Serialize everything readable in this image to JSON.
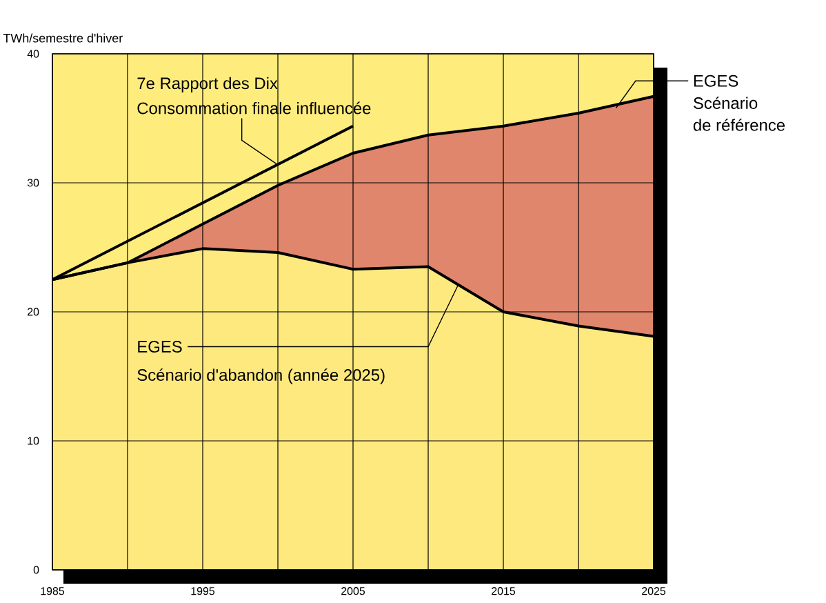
{
  "chart_data": {
    "type": "line",
    "ylabel": "TWh/semestre d'hiver",
    "xlim": [
      1985,
      2025
    ],
    "xticks": [
      1985,
      {
        "value": 1990,
        "label": null
      },
      1995,
      {
        "value": 2000,
        "label": null
      },
      2005,
      {
        "value": 2010,
        "label": null
      },
      2015,
      {
        "value": 2020,
        "label": null
      },
      2025
    ],
    "ylim": [
      0,
      40
    ],
    "yticks": [
      0,
      10,
      20,
      30,
      40
    ],
    "grid": true,
    "series": [
      {
        "color": "#000000",
        "x": [
          1985,
          2005
        ],
        "values": [
          22.5,
          34.4
        ]
      },
      {
        "type": "area",
        "color": "#e0866c",
        "x": [
          1985,
          1990,
          1995,
          2000,
          2005,
          2010,
          2015,
          2020,
          2025
        ],
        "values": [
          22.5,
          23.8,
          26.8,
          29.8,
          32.3,
          33.7,
          34.4,
          35.4,
          36.7
        ]
      },
      {
        "type": "area",
        "color": "#fde97e",
        "x": [
          1985,
          1990,
          1995,
          2000,
          2005,
          2010,
          2015,
          2020,
          2025
        ],
        "values": [
          22.5,
          23.8,
          24.9,
          24.6,
          23.3,
          23.5,
          20.0,
          18.9,
          18.1
        ]
      }
    ],
    "annotations": [
      "7e Rapport des Dix",
      {
        "text": "Consommation finale influencée",
        "x": 2000,
        "y": 31.4
      },
      {
        "text": "EGES",
        "x": 2022.5,
        "y": 35.8
      },
      "Scénario",
      "de référence",
      {
        "text": "EGES",
        "x": 2012,
        "y": 22.1
      },
      "Scénario d'abandon (année 2025)"
    ]
  }
}
